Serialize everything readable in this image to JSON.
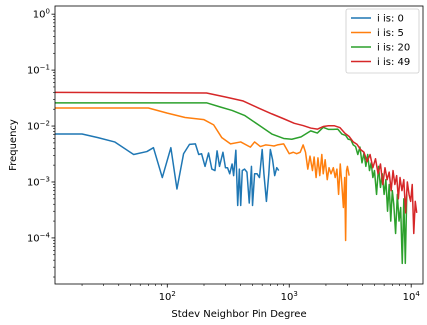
{
  "chart_data": {
    "type": "line",
    "xlabel": "Stdev Neighbor Pin Degree",
    "ylabel": "Frequency",
    "xscale": "log",
    "yscale": "log",
    "xlim": [
      12,
      12500
    ],
    "ylim": [
      1.5e-05,
      1.4
    ],
    "grid": false,
    "legend_position": "top-right",
    "x_ticks": [
      {
        "value": 100,
        "label": "10",
        "sup": "2"
      },
      {
        "value": 1000,
        "label": "10",
        "sup": "3"
      },
      {
        "value": 10000,
        "label": "10",
        "sup": "4"
      }
    ],
    "y_ticks": [
      {
        "value": 1,
        "label": "10",
        "sup": "0"
      },
      {
        "value": 0.1,
        "label": "10",
        "sup": "−1"
      },
      {
        "value": 0.01,
        "label": "10",
        "sup": "−2"
      },
      {
        "value": 0.001,
        "label": "10",
        "sup": "−3"
      },
      {
        "value": 0.0001,
        "label": "10",
        "sup": "−4"
      }
    ],
    "series": [
      {
        "name": "i is: 0",
        "color": "#1f77b4",
        "points": [
          [
            12,
            0.0072
          ],
          [
            20,
            0.0072
          ],
          [
            27,
            0.0062
          ],
          [
            37,
            0.0052
          ],
          [
            53,
            0.0031
          ],
          [
            68,
            0.0035
          ],
          [
            77,
            0.0041
          ],
          [
            91,
            0.0012
          ],
          [
            107,
            0.0041
          ],
          [
            120,
            0.00075
          ],
          [
            136,
            0.0032
          ],
          [
            152,
            0.0047
          ],
          [
            170,
            0.0048
          ],
          [
            181,
            0.0031
          ],
          [
            191,
            0.0032
          ],
          [
            204,
            0.0019
          ],
          [
            218,
            0.0033
          ],
          [
            232,
            0.0017
          ],
          [
            246,
            0.0016
          ],
          [
            256,
            0.0036
          ],
          [
            268,
            0.0019
          ],
          [
            286,
            0.0034
          ],
          [
            300,
            0.0018
          ],
          [
            312,
            0.0018
          ],
          [
            325,
            0.0014
          ],
          [
            340,
            0.0021
          ],
          [
            350,
            0.0013
          ],
          [
            365,
            0.0037
          ],
          [
            378,
            0.00038
          ],
          [
            390,
            0.0017
          ],
          [
            400,
            0.00038
          ],
          [
            412,
            0.0016
          ],
          [
            430,
            0.0017
          ],
          [
            450,
            0.0015
          ],
          [
            470,
            0.00042
          ],
          [
            490,
            0.0019
          ],
          [
            500,
            0.00038
          ],
          [
            520,
            0.0014
          ],
          [
            545,
            0.0014
          ],
          [
            570,
            0.0012
          ],
          [
            600,
            0.0038
          ],
          [
            620,
            0.0014
          ],
          [
            650,
            0.00045
          ],
          [
            680,
            0.0014
          ],
          [
            700,
            0.0038
          ],
          [
            730,
            0.0025
          ],
          [
            760,
            0.0013
          ],
          [
            790,
            0.0018
          ],
          [
            820,
            0.0016
          ]
        ]
      },
      {
        "name": "i is: 5",
        "color": "#ff7f0e",
        "points": [
          [
            12,
            0.021
          ],
          [
            70,
            0.021
          ],
          [
            100,
            0.017
          ],
          [
            140,
            0.0142
          ],
          [
            200,
            0.013
          ],
          [
            240,
            0.0105
          ],
          [
            280,
            0.0062
          ],
          [
            330,
            0.0048
          ],
          [
            400,
            0.0052
          ],
          [
            480,
            0.0042
          ],
          [
            520,
            0.0052
          ],
          [
            580,
            0.0043
          ],
          [
            640,
            0.0046
          ],
          [
            700,
            0.0045
          ],
          [
            750,
            0.0044
          ],
          [
            800,
            0.0046
          ],
          [
            900,
            0.0048
          ],
          [
            1000,
            0.0032
          ],
          [
            1080,
            0.0034
          ],
          [
            1150,
            0.0032
          ],
          [
            1230,
            0.0034
          ],
          [
            1300,
            0.0046
          ],
          [
            1360,
            0.0034
          ],
          [
            1420,
            0.0017
          ],
          [
            1480,
            0.0029
          ],
          [
            1550,
            0.0016
          ],
          [
            1600,
            0.0028
          ],
          [
            1660,
            0.0012
          ],
          [
            1720,
            0.0027
          ],
          [
            1780,
            0.0013
          ],
          [
            1850,
            0.0031
          ],
          [
            1900,
            0.0014
          ],
          [
            1970,
            0.0025
          ],
          [
            2050,
            0.0011
          ],
          [
            2120,
            0.0018
          ],
          [
            2200,
            0.0014
          ],
          [
            2300,
            0.0018
          ],
          [
            2380,
            0.0012
          ],
          [
            2460,
            0.0017
          ],
          [
            2540,
            0.0006
          ],
          [
            2620,
            0.0021
          ],
          [
            2700,
            0.0009
          ],
          [
            2780,
            0.00035
          ],
          [
            2850,
            0.0012
          ],
          [
            2900,
            9e-05
          ],
          [
            2950,
            0.0016
          ],
          [
            3000,
            0.0019
          ],
          [
            3100,
            0.0013
          ]
        ]
      },
      {
        "name": "i is: 20",
        "color": "#2ca02c",
        "points": [
          [
            12,
            0.026
          ],
          [
            210,
            0.026
          ],
          [
            270,
            0.022
          ],
          [
            340,
            0.019
          ],
          [
            430,
            0.0155
          ],
          [
            560,
            0.0105
          ],
          [
            720,
            0.0072
          ],
          [
            900,
            0.006
          ],
          [
            1050,
            0.0058
          ],
          [
            1250,
            0.0064
          ],
          [
            1500,
            0.0082
          ],
          [
            1700,
            0.0075
          ],
          [
            1900,
            0.0095
          ],
          [
            2100,
            0.0087
          ],
          [
            2300,
            0.0087
          ],
          [
            2500,
            0.0088
          ],
          [
            2700,
            0.0072
          ],
          [
            2900,
            0.0068
          ],
          [
            3050,
            0.0058
          ],
          [
            3200,
            0.0057
          ],
          [
            3350,
            0.0046
          ],
          [
            3500,
            0.0043
          ],
          [
            3650,
            0.0031
          ],
          [
            3800,
            0.0042
          ],
          [
            3950,
            0.0022
          ],
          [
            4100,
            0.0033
          ],
          [
            4250,
            0.0019
          ],
          [
            4400,
            0.0031
          ],
          [
            4550,
            0.0016
          ],
          [
            4700,
            0.0022
          ],
          [
            4850,
            0.0012
          ],
          [
            5000,
            0.0016
          ],
          [
            5200,
            0.0006
          ],
          [
            5400,
            0.0019
          ],
          [
            5600,
            0.0008
          ],
          [
            5800,
            0.0014
          ],
          [
            6000,
            0.0006
          ],
          [
            6200,
            0.0011
          ],
          [
            6400,
            0.0003
          ],
          [
            6600,
            0.0009
          ],
          [
            6800,
            0.0002
          ],
          [
            7000,
            0.0007
          ],
          [
            7200,
            0.0004
          ],
          [
            7450,
            0.00012
          ],
          [
            7700,
            0.0006
          ],
          [
            7950,
            0.0002
          ],
          [
            8200,
            0.00035
          ],
          [
            8450,
            3.5e-05
          ],
          [
            8700,
            0.0005
          ],
          [
            8950,
            3.5e-05
          ],
          [
            9200,
            0.0006
          ]
        ]
      },
      {
        "name": "i is: 49",
        "color": "#d62728",
        "points": [
          [
            12,
            0.04
          ],
          [
            210,
            0.039
          ],
          [
            300,
            0.033
          ],
          [
            420,
            0.028
          ],
          [
            560,
            0.021
          ],
          [
            720,
            0.0165
          ],
          [
            900,
            0.0135
          ],
          [
            1100,
            0.0112
          ],
          [
            1300,
            0.0102
          ],
          [
            1500,
            0.0092
          ],
          [
            1700,
            0.0088
          ],
          [
            1900,
            0.0098
          ],
          [
            2100,
            0.0101
          ],
          [
            2350,
            0.0101
          ],
          [
            2600,
            0.0094
          ],
          [
            2850,
            0.0075
          ],
          [
            3100,
            0.0065
          ],
          [
            3350,
            0.0052
          ],
          [
            3600,
            0.0047
          ],
          [
            3850,
            0.0038
          ],
          [
            4100,
            0.0034
          ],
          [
            4350,
            0.0023
          ],
          [
            4600,
            0.0031
          ],
          [
            4850,
            0.0018
          ],
          [
            5100,
            0.0026
          ],
          [
            5350,
            0.0014
          ],
          [
            5600,
            0.0021
          ],
          [
            5850,
            0.0009
          ],
          [
            6100,
            0.0018
          ],
          [
            6350,
            0.0011
          ],
          [
            6600,
            0.0015
          ],
          [
            6850,
            0.0007
          ],
          [
            7100,
            0.0016
          ],
          [
            7350,
            0.0009
          ],
          [
            7600,
            0.0013
          ],
          [
            7850,
            0.0005
          ],
          [
            8100,
            0.0012
          ],
          [
            8400,
            0.0007
          ],
          [
            8700,
            0.0011
          ],
          [
            9000,
            0.00028
          ],
          [
            9300,
            0.001
          ],
          [
            9600,
            0.0006
          ],
          [
            9900,
            0.00045
          ],
          [
            10200,
            0.0009
          ],
          [
            10500,
            0.00012
          ],
          [
            10800,
            0.00045
          ],
          [
            11100,
            0.00028
          ]
        ]
      }
    ]
  }
}
